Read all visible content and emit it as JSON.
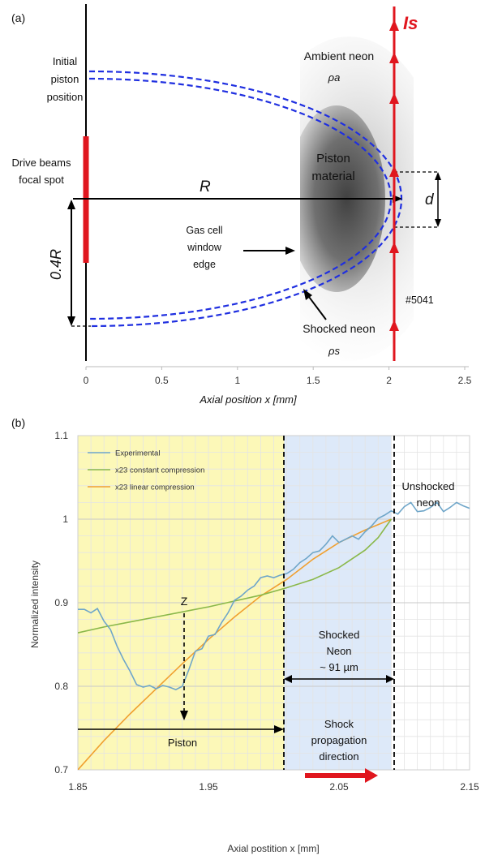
{
  "panel_a": {
    "panel_label": "(a)",
    "labels": {
      "initial_piston": [
        "Initial",
        "piston",
        "position"
      ],
      "drive_beams": [
        "Drive beams",
        "focal spot"
      ],
      "ambient_neon": "Ambient neon",
      "rho_a": "ρa",
      "piston_material": [
        "Piston",
        "material"
      ],
      "R": "R",
      "d": "d",
      "gas_cell": [
        "Gas cell",
        "window",
        "edge"
      ],
      "zero_four_R": "0.4R",
      "shot_number": "#5041",
      "shocked_neon": "Shocked neon",
      "rho_s": "ρs",
      "Is": "Is"
    },
    "x_ticks": [
      "0",
      "0.5",
      "1",
      "1.5",
      "2",
      "2.5"
    ],
    "x_axis_label": "Axial position x [mm]",
    "colors": {
      "red": "#e0161e",
      "blue_dashed": "#1f2fe0"
    }
  },
  "panel_b": {
    "panel_label": "(b)",
    "annotations": {
      "Z": "Z",
      "unshocked": [
        "Unshocked",
        "neon"
      ],
      "shocked": [
        "Shocked",
        "Neon",
        "~ 91 µm"
      ],
      "piston": "Piston",
      "shock_dir": [
        "Shock",
        "propagation",
        "direction"
      ]
    },
    "colors": {
      "experimental": "#6fa6c9",
      "constant": "#8ab84a",
      "linear": "#f0a030",
      "piston_region": "#fcf8b8",
      "shocked_region": "#dde9f9",
      "arrow": "#e0161e"
    }
  },
  "chart_data": {
    "type": "line",
    "title": "",
    "xlabel": "Axial postition x [mm]",
    "ylabel": "Normalized  intensity",
    "xlim": [
      1.85,
      2.15
    ],
    "ylim": [
      0.7,
      1.1
    ],
    "x_ticks": [
      "1.85",
      "1.95",
      "2.05",
      "2.15"
    ],
    "y_ticks": [
      "0.7",
      "0.8",
      "0.9",
      "1",
      "1.1"
    ],
    "legend": "top-left",
    "grid": true,
    "series": [
      {
        "name": "Experimental",
        "x": [
          1.85,
          1.855,
          1.86,
          1.865,
          1.87,
          1.875,
          1.88,
          1.885,
          1.89,
          1.895,
          1.9,
          1.905,
          1.91,
          1.915,
          1.92,
          1.925,
          1.93,
          1.935,
          1.94,
          1.945,
          1.95,
          1.955,
          1.96,
          1.965,
          1.97,
          1.975,
          1.98,
          1.985,
          1.99,
          1.995,
          2.0,
          2.005,
          2.01,
          2.015,
          2.02,
          2.025,
          2.03,
          2.035,
          2.04,
          2.045,
          2.05,
          2.055,
          2.06,
          2.065,
          2.07,
          2.075,
          2.08,
          2.085,
          2.09,
          2.095,
          2.1,
          2.105,
          2.11,
          2.115,
          2.12,
          2.125,
          2.13,
          2.135,
          2.14,
          2.145,
          2.15
        ],
        "y": [
          0.892,
          0.892,
          0.888,
          0.893,
          0.878,
          0.868,
          0.848,
          0.832,
          0.818,
          0.802,
          0.799,
          0.801,
          0.797,
          0.801,
          0.799,
          0.796,
          0.8,
          0.82,
          0.842,
          0.845,
          0.86,
          0.862,
          0.876,
          0.888,
          0.903,
          0.908,
          0.915,
          0.92,
          0.93,
          0.932,
          0.93,
          0.933,
          0.935,
          0.94,
          0.948,
          0.953,
          0.96,
          0.962,
          0.97,
          0.98,
          0.972,
          0.976,
          0.98,
          0.976,
          0.985,
          0.992,
          1.001,
          1.005,
          1.01,
          1.006,
          1.015,
          1.02,
          1.009,
          1.01,
          1.014,
          1.02,
          1.009,
          1.014,
          1.02,
          1.016,
          1.013
        ]
      },
      {
        "name": "x23 constant compression",
        "x": [
          1.85,
          1.87,
          1.89,
          1.91,
          1.93,
          1.95,
          1.97,
          1.99,
          2.01,
          2.03,
          2.05,
          2.07,
          2.08,
          2.09
        ],
        "y": [
          0.864,
          0.871,
          0.877,
          0.883,
          0.889,
          0.895,
          0.902,
          0.909,
          0.918,
          0.928,
          0.942,
          0.963,
          0.978,
          1.0
        ]
      },
      {
        "name": "x23 linear compression",
        "x": [
          1.85,
          1.87,
          1.89,
          1.91,
          1.93,
          1.95,
          1.97,
          1.99,
          2.01,
          2.03,
          2.05,
          2.07,
          2.09
        ],
        "y": [
          0.7,
          0.735,
          0.767,
          0.797,
          0.827,
          0.856,
          0.883,
          0.908,
          0.928,
          0.952,
          0.972,
          0.987,
          1.0
        ]
      }
    ]
  }
}
